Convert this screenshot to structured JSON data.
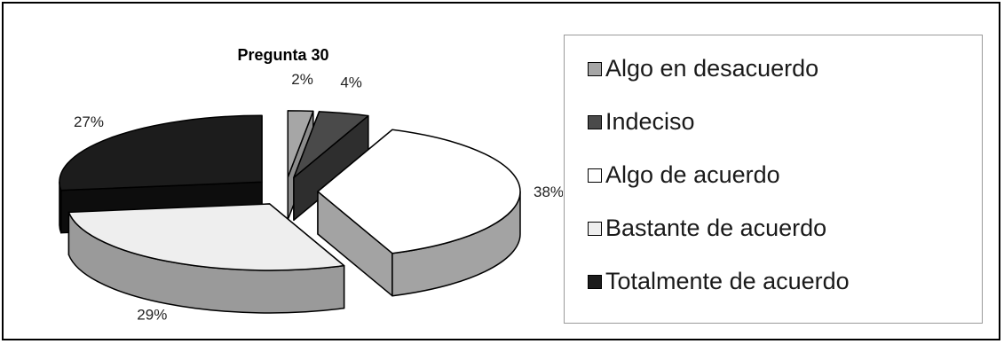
{
  "chart_data": {
    "type": "pie",
    "title": "Pregunta 30",
    "labels": [
      "Algo en desacuerdo",
      "Indeciso",
      "Algo de acuerdo",
      "Bastante de acuerdo",
      "Totalmente de acuerdo"
    ],
    "values": [
      2,
      4,
      38,
      29,
      27
    ],
    "value_labels": [
      "2%",
      "4%",
      "38%",
      "29%",
      "27%"
    ],
    "colors": [
      "#a6a6a6",
      "#4a4a4a",
      "#ffffff",
      "#eeeeee",
      "#1c1c1c"
    ],
    "side_colors": [
      "#8c8c8c",
      "#2e2e2e",
      "#a3a3a3",
      "#9a9a9a",
      "#0d0d0d"
    ],
    "exploded": true,
    "three_d": true,
    "legend_position": "right"
  }
}
